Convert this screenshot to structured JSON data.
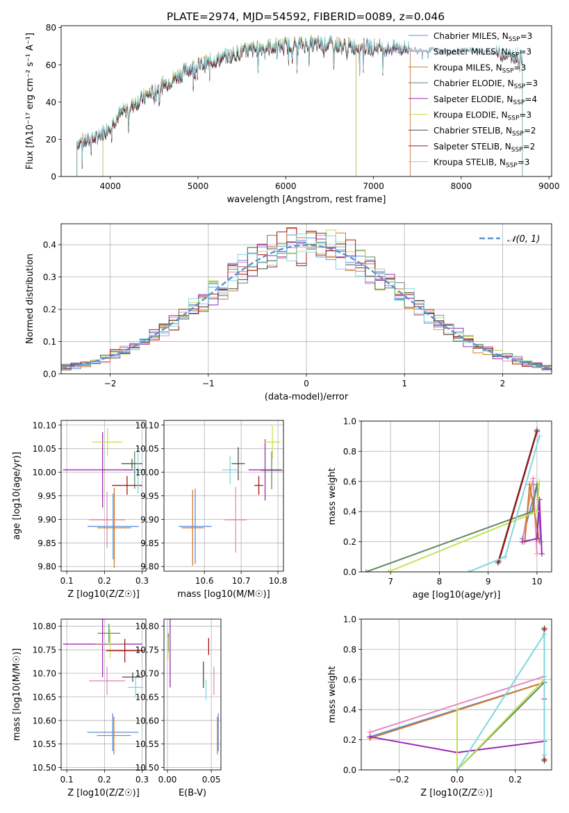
{
  "title": "PLATE=2974, MJD=54592, FIBERID=0089, z=0.046",
  "colors": {
    "Chabrier MILES": "#5b8fde",
    "Salpeter MILES": "#e68ab8",
    "Kroupa MILES": "#d07a2a",
    "Chabrier ELODIE": "#5e8a5e",
    "Salpeter ELODIE": "#9b27b0",
    "Kroupa ELODIE": "#c6e050",
    "Chabrier STELIB": "#4a4a4a",
    "Salpeter STELIB": "#a31515",
    "Kroupa STELIB": "#7fd6e0"
  },
  "chart_data": [
    {
      "id": "spectrum",
      "type": "line",
      "title": "PLATE=2974, MJD=54592, FIBERID=0089, z=0.046",
      "xlabel": "wavelength [Angstrom, rest frame]",
      "ylabel": "Flux [fλ10⁻¹⁷ erg cm⁻² s⁻¹ A⁻¹]",
      "xlim": [
        3440,
        9030
      ],
      "ylim": [
        0,
        81
      ],
      "xticks": [
        4000,
        5000,
        6000,
        7000,
        8000,
        9000
      ],
      "yticks": [
        0,
        20,
        40,
        60,
        80
      ],
      "legend": "upper-right",
      "continuum": [
        [
          3620,
          18
        ],
        [
          3800,
          20
        ],
        [
          3950,
          25
        ],
        [
          4100,
          33
        ],
        [
          4300,
          40
        ],
        [
          4500,
          46
        ],
        [
          4700,
          52
        ],
        [
          4900,
          58
        ],
        [
          5100,
          61
        ],
        [
          5300,
          64
        ],
        [
          5500,
          67
        ],
        [
          5700,
          69
        ],
        [
          5900,
          70
        ],
        [
          6100,
          71
        ],
        [
          6300,
          71
        ],
        [
          6500,
          71
        ],
        [
          6700,
          70
        ],
        [
          6900,
          70
        ],
        [
          7100,
          69
        ],
        [
          7300,
          69
        ],
        [
          7500,
          68
        ],
        [
          7700,
          68
        ],
        [
          7900,
          67
        ],
        [
          8100,
          68
        ],
        [
          8300,
          67
        ],
        [
          8500,
          66
        ],
        [
          8700,
          64
        ]
      ],
      "series": [
        {
          "name": "Chabrier MILES, N_SSP=3",
          "xrange": [
            3620,
            7420
          ]
        },
        {
          "name": "Salpeter MILES, N_SSP=3",
          "xrange": [
            3620,
            7420
          ]
        },
        {
          "name": "Kroupa MILES, N_SSP=3",
          "xrange": [
            3620,
            7420
          ]
        },
        {
          "name": "Chabrier ELODIE, N_SSP=3",
          "xrange": [
            3910,
            6800
          ]
        },
        {
          "name": "Salpeter ELODIE, N_SSP=4",
          "xrange": [
            3910,
            6800
          ]
        },
        {
          "name": "Kroupa ELODIE, N_SSP=3",
          "xrange": [
            3910,
            6800
          ]
        },
        {
          "name": "Chabrier STELIB, N_SSP=2",
          "xrange": [
            3620,
            8700
          ]
        },
        {
          "name": "Salpeter STELIB, N_SSP=2",
          "xrange": [
            3620,
            8700
          ]
        },
        {
          "name": "Kroupa STELIB, N_SSP=3",
          "xrange": [
            3620,
            8700
          ]
        }
      ]
    },
    {
      "id": "residuals",
      "type": "histogram",
      "xlabel": "(data-model)/error",
      "ylabel": "Normed distribution",
      "xlim": [
        -2.5,
        2.5
      ],
      "ylim": [
        0,
        0.465
      ],
      "xticks": [
        -2,
        -1,
        0,
        1,
        2
      ],
      "yticks": [
        0.0,
        0.1,
        0.2,
        0.3,
        0.4
      ],
      "legend": "upper-right",
      "reference": {
        "name": "N(0,1)",
        "label": "𝒩(0, 1)",
        "mean": 0,
        "sigma": 1
      },
      "bins": {
        "start": -2.5,
        "width": 0.1
      }
    },
    {
      "id": "age-vs-Z",
      "type": "errorbar",
      "xlabel": "Z [log10(Z/Z☉)]",
      "ylabel": "age  [log10(age/yr)]",
      "xlim": [
        0.085,
        0.31
      ],
      "ylim": [
        9.79,
        10.11
      ],
      "xticks": [
        0.1,
        0.2,
        0.3
      ],
      "yticks": [
        9.8,
        9.85,
        9.9,
        9.95,
        10.0,
        10.05,
        10.1
      ],
      "points": [
        {
          "x": 0.223,
          "y": 9.885,
          "xerr": 0.068,
          "yerr": 0.07
        },
        {
          "x": 0.207,
          "y": 9.899,
          "xerr": 0.048,
          "yerr": 0.06
        },
        {
          "x": 0.226,
          "y": 9.882,
          "xerr": 0.045,
          "yerr": 0.085
        },
        {
          "x": 0.28,
          "y": 10.005,
          "xerr": 0.03,
          "yerr": 0.04
        },
        {
          "x": 0.195,
          "y": 10.005,
          "xerr": 0.105,
          "yerr": 0.08
        },
        {
          "x": 0.208,
          "y": 10.064,
          "xerr": 0.04,
          "yerr": 0.03
        },
        {
          "x": 0.273,
          "y": 10.018,
          "xerr": 0.028,
          "yerr": 0.01
        },
        {
          "x": 0.26,
          "y": 9.972,
          "xerr": 0.04,
          "yerr": 0.02
        },
        {
          "x": 0.289,
          "y": 10.005,
          "xerr": 0.012,
          "yerr": 0.05
        }
      ]
    },
    {
      "id": "age-vs-mass",
      "type": "errorbar",
      "xlabel": "mass [log10(M/M☉)]",
      "ylabel": "",
      "xlim": [
        10.49,
        10.815
      ],
      "ylim": [
        9.79,
        10.11
      ],
      "xticks": [
        10.6,
        10.7,
        10.8
      ],
      "yticks": [
        9.8,
        9.85,
        9.9,
        9.95,
        10.0,
        10.05,
        10.1
      ],
      "points": [
        {
          "x": 10.575,
          "y": 9.885,
          "xerr": 0.045,
          "yerr": 0.08
        },
        {
          "x": 10.685,
          "y": 9.899,
          "xerr": 0.03,
          "yerr": 0.07
        },
        {
          "x": 10.568,
          "y": 9.882,
          "xerr": 0.03,
          "yerr": 0.08
        },
        {
          "x": 10.783,
          "y": 10.004,
          "xerr": 0.03,
          "yerr": 0.04
        },
        {
          "x": 10.765,
          "y": 10.005,
          "xerr": 0.045,
          "yerr": 0.065
        },
        {
          "x": 10.785,
          "y": 10.064,
          "xerr": 0.022,
          "yerr": 0.035
        },
        {
          "x": 10.692,
          "y": 10.018,
          "xerr": 0.018,
          "yerr": 0.035
        },
        {
          "x": 10.748,
          "y": 9.972,
          "xerr": 0.012,
          "yerr": 0.02
        },
        {
          "x": 10.67,
          "y": 10.005,
          "xerr": 0.022,
          "yerr": 0.03
        }
      ]
    },
    {
      "id": "massweight-vs-age",
      "type": "line",
      "xlabel": "age  [log10(age/yr)]",
      "ylabel": "mass weight",
      "xlim": [
        6.4,
        10.3
      ],
      "ylim": [
        0,
        1.0
      ],
      "xticks": [
        7,
        8,
        9,
        10
      ],
      "yticks": [
        0.0,
        0.2,
        0.4,
        0.6,
        0.8,
        1.0
      ],
      "series": [
        {
          "name": "Chabrier MILES",
          "points": [
            [
              9.7,
              0.22
            ],
            [
              10.0,
              0.58
            ],
            [
              10.08,
              0.2
            ]
          ]
        },
        {
          "name": "Salpeter MILES",
          "points": [
            [
              9.7,
              0.2
            ],
            [
              9.92,
              0.62
            ],
            [
              10.0,
              0.12
            ]
          ]
        },
        {
          "name": "Kroupa MILES",
          "points": [
            [
              9.75,
              0.2
            ],
            [
              9.85,
              0.58
            ],
            [
              10.05,
              0.2
            ]
          ]
        },
        {
          "name": "Chabrier ELODIE",
          "points": [
            [
              6.5,
              0.0
            ],
            [
              9.9,
              0.4
            ],
            [
              10.0,
              0.58
            ]
          ]
        },
        {
          "name": "Salpeter ELODIE",
          "points": [
            [
              9.7,
              0.2
            ],
            [
              10.0,
              0.22
            ],
            [
              10.05,
              0.48
            ],
            [
              10.1,
              0.12
            ]
          ]
        },
        {
          "name": "Kroupa ELODIE",
          "points": [
            [
              6.95,
              0.0
            ],
            [
              10.0,
              0.4
            ],
            [
              10.05,
              0.6
            ]
          ]
        },
        {
          "name": "Chabrier STELIB",
          "points": [
            [
              9.2,
              0.06
            ],
            [
              10.0,
              0.94
            ]
          ]
        },
        {
          "name": "Salpeter STELIB",
          "points": [
            [
              9.22,
              0.07
            ],
            [
              10.0,
              0.93
            ]
          ]
        },
        {
          "name": "Kroupa STELIB",
          "points": [
            [
              8.6,
              0.0
            ],
            [
              9.35,
              0.1
            ],
            [
              10.05,
              0.9
            ]
          ]
        }
      ]
    },
    {
      "id": "mass-vs-Z",
      "type": "errorbar",
      "xlabel": "Z [log10(Z/Z☉)]",
      "ylabel": "mass [log10(M/M☉)]",
      "xlim": [
        0.085,
        0.31
      ],
      "ylim": [
        10.495,
        10.815
      ],
      "xticks": [
        0.1,
        0.2,
        0.3
      ],
      "yticks": [
        10.5,
        10.55,
        10.6,
        10.65,
        10.7,
        10.75,
        10.8
      ],
      "points": [
        {
          "x": 0.222,
          "y": 10.575,
          "xerr": 0.068,
          "yerr": 0.04
        },
        {
          "x": 0.207,
          "y": 10.684,
          "xerr": 0.048,
          "yerr": 0.03
        },
        {
          "x": 0.225,
          "y": 10.568,
          "xerr": 0.045,
          "yerr": 0.04
        },
        {
          "x": 0.212,
          "y": 10.785,
          "xerr": 0.03,
          "yerr": 0.02
        },
        {
          "x": 0.195,
          "y": 10.762,
          "xerr": 0.105,
          "yerr": 0.07
        },
        {
          "x": 0.215,
          "y": 10.763,
          "xerr": 0.04,
          "yerr": 0.03
        },
        {
          "x": 0.275,
          "y": 10.692,
          "xerr": 0.028,
          "yerr": 0.01
        },
        {
          "x": 0.254,
          "y": 10.748,
          "xerr": 0.05,
          "yerr": 0.025
        },
        {
          "x": 0.283,
          "y": 10.67,
          "xerr": 0.02,
          "yerr": 0.02
        }
      ]
    },
    {
      "id": "mass-vs-ebv",
      "type": "errorbar",
      "xlabel": "E(B-V)",
      "ylabel": "",
      "xlim": [
        -0.004,
        0.061
      ],
      "ylim": [
        10.495,
        10.815
      ],
      "xticks": [
        0.0,
        0.05
      ],
      "xticklabels": [
        "0.00",
        "0.05"
      ],
      "yticks": [
        10.5,
        10.55,
        10.6,
        10.65,
        10.7,
        10.75,
        10.8
      ],
      "points": [
        {
          "x": 0.058,
          "y": 10.575,
          "xerr": 0,
          "yerr": 0.04
        },
        {
          "x": 0.053,
          "y": 10.684,
          "xerr": 0,
          "yerr": 0.03
        },
        {
          "x": 0.057,
          "y": 10.568,
          "xerr": 0,
          "yerr": 0.04
        },
        {
          "x": 0.001,
          "y": 10.765,
          "xerr": 0,
          "yerr": 0.02
        },
        {
          "x": 0.003,
          "y": 10.745,
          "xerr": 0,
          "yerr": 0.075
        },
        {
          "x": 0.0005,
          "y": 10.752,
          "xerr": 0,
          "yerr": 0.025
        },
        {
          "x": 0.041,
          "y": 10.697,
          "xerr": 0,
          "yerr": 0.028
        },
        {
          "x": 0.047,
          "y": 10.757,
          "xerr": 0,
          "yerr": 0.018
        },
        {
          "x": 0.044,
          "y": 10.665,
          "xerr": 0,
          "yerr": 0.022
        }
      ]
    },
    {
      "id": "massweight-vs-Z",
      "type": "line",
      "xlabel": "Z [log10(Z/Z☉)]",
      "ylabel": "mass weight",
      "xlim": [
        -0.33,
        0.325
      ],
      "ylim": [
        0,
        1.0
      ],
      "xticks": [
        -0.2,
        0.0,
        0.2
      ],
      "xticklabels": [
        "−0.2",
        "0.0",
        "0.2"
      ],
      "yticks": [
        0.0,
        0.2,
        0.4,
        0.6,
        0.8,
        1.0
      ],
      "series": [
        {
          "name": "Chabrier MILES",
          "points": [
            [
              -0.3,
              0.22
            ],
            [
              0.3,
              0.58
            ]
          ]
        },
        {
          "name": "Salpeter MILES",
          "points": [
            [
              -0.3,
              0.25
            ],
            [
              0.3,
              0.62
            ]
          ]
        },
        {
          "name": "Kroupa MILES",
          "points": [
            [
              -0.3,
              0.21
            ],
            [
              0.3,
              0.58
            ]
          ]
        },
        {
          "name": "Chabrier ELODIE",
          "points": [
            [
              0.0,
              0.4
            ],
            [
              0.0,
              0.0
            ],
            [
              0.3,
              0.58
            ]
          ]
        },
        {
          "name": "Salpeter ELODIE",
          "points": [
            [
              -0.3,
              0.22
            ],
            [
              0.0,
              0.115
            ],
            [
              0.3,
              0.19
            ],
            [
              0.3,
              0.47
            ]
          ]
        },
        {
          "name": "Kroupa ELODIE",
          "points": [
            [
              0.0,
              0.4
            ],
            [
              0.0,
              0.0
            ],
            [
              0.3,
              0.6
            ]
          ]
        },
        {
          "name": "Chabrier STELIB",
          "points": [
            [
              0.3,
              0.06
            ],
            [
              0.3,
              0.94
            ]
          ]
        },
        {
          "name": "Salpeter STELIB",
          "points": [
            [
              0.3,
              0.07
            ],
            [
              0.3,
              0.93
            ]
          ]
        },
        {
          "name": "Kroupa STELIB",
          "points": [
            [
              0.0,
              0.0
            ],
            [
              0.3,
              0.9
            ],
            [
              0.3,
              0.1
            ]
          ]
        }
      ]
    }
  ]
}
